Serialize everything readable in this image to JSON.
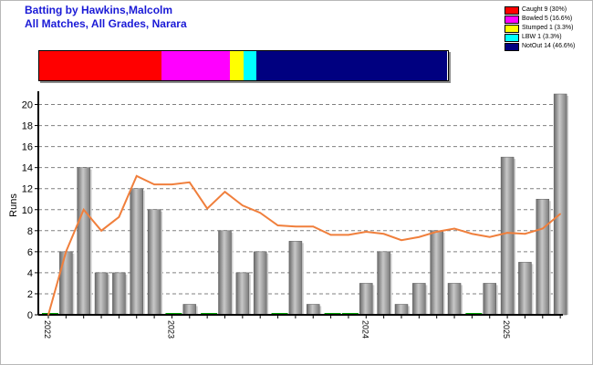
{
  "title": "Batting by Hawkins,Malcolm",
  "subtitle": "All Matches, All Grades, Narara",
  "legend": [
    {
      "label": "Caught 9 (30%)",
      "color": "#ff0000",
      "fraction": 0.3
    },
    {
      "label": "Bowled 5 (16.6%)",
      "color": "#ff00ff",
      "fraction": 0.166
    },
    {
      "label": "Stumped 1 (3.3%)",
      "color": "#ffff00",
      "fraction": 0.033
    },
    {
      "label": "LBW 1 (3.3%)",
      "color": "#00ffff",
      "fraction": 0.033
    },
    {
      "label": "NotOut 14 (46.6%)",
      "color": "#000080",
      "fraction": 0.466
    }
  ],
  "chart_data": {
    "type": "bar",
    "ylabel": "Runs",
    "ylim": [
      0,
      21
    ],
    "yticks": [
      0,
      2,
      4,
      6,
      8,
      10,
      12,
      14,
      16,
      18,
      20
    ],
    "xtick_labels": [
      {
        "label": "2022",
        "index": 0
      },
      {
        "label": "2023",
        "index": 7
      },
      {
        "label": "2024",
        "index": 18
      },
      {
        "label": "2025",
        "index": 26
      }
    ],
    "grid": "horizontal-dashed",
    "series": [
      {
        "values": [
          0,
          6,
          14,
          4,
          4,
          12,
          10,
          0,
          1,
          0,
          8,
          4,
          6,
          0,
          7,
          1,
          0,
          0,
          3,
          6,
          1,
          3,
          8,
          3,
          0,
          3,
          15,
          5,
          11,
          21
        ],
        "color": "#909090",
        "zero_marker_color": "#00a000"
      },
      {
        "type": "line",
        "values": [
          0,
          6,
          10,
          8,
          9.3,
          13.2,
          12.4,
          12.4,
          12.6,
          10.1,
          11.7,
          10.4,
          9.7,
          8.5,
          8.4,
          8.4,
          7.6,
          7.6,
          7.9,
          7.7,
          7.1,
          7.4,
          7.9,
          8.2,
          7.7,
          7.4,
          7.8,
          7.7,
          8.2,
          9.6
        ],
        "color": "#f07f3c"
      }
    ]
  }
}
